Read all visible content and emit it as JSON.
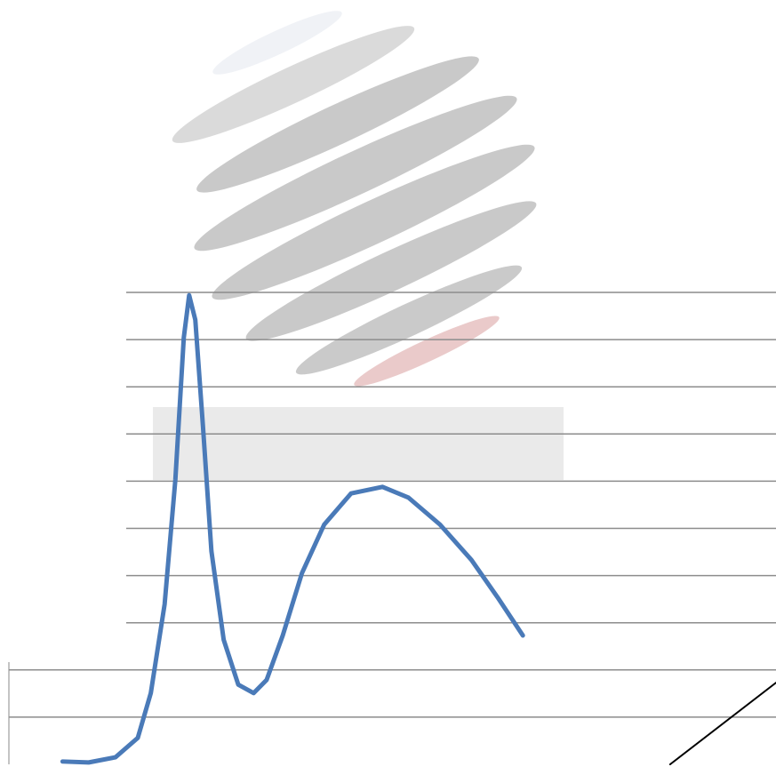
{
  "chart_data": {
    "type": "line",
    "series": [
      {
        "color": "#4a7ab8",
        "x": [
          7.0,
          10.4,
          13.9,
          16.8,
          18.5,
          20.3,
          21.7,
          22.8,
          23.5,
          24.3,
          25.3,
          26.4,
          28.0,
          29.9,
          31.9,
          33.6,
          35.7,
          38.2,
          41.1,
          44.6,
          48.7,
          52.1,
          56.2,
          60.3,
          63.7,
          67.0
        ],
        "values": [
          0.06,
          0.04,
          0.15,
          0.56,
          1.51,
          3.39,
          6.03,
          9.04,
          9.94,
          9.42,
          7.16,
          4.52,
          2.64,
          1.69,
          1.51,
          1.79,
          2.73,
          4.05,
          5.08,
          5.74,
          5.88,
          5.65,
          5.08,
          4.33,
          3.54,
          2.73
        ]
      },
      {
        "color": "#000000",
        "x": [
          86.2,
          100
        ],
        "values": [
          0,
          1.73
        ]
      }
    ],
    "xlim": [
      0,
      100
    ],
    "ylim": [
      0,
      10
    ],
    "yticks": [
      1,
      2,
      3,
      4,
      5,
      6,
      7,
      8,
      9,
      10
    ],
    "grid": true
  }
}
